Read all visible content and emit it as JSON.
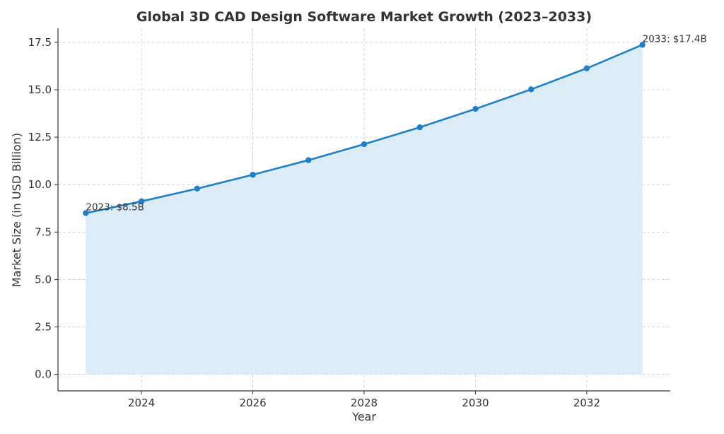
{
  "chart_data": {
    "type": "area",
    "title": "Global 3D CAD Design Software Market Growth (2023–2033)",
    "xlabel": "Year",
    "ylabel": "Market Size (in USD Billion)",
    "x": [
      2023,
      2024,
      2025,
      2026,
      2027,
      2028,
      2029,
      2030,
      2031,
      2032,
      2033
    ],
    "series": [
      {
        "values": [
          8.5,
          9.12,
          9.79,
          10.52,
          11.29,
          12.13,
          13.02,
          13.99,
          15.02,
          16.13,
          17.37
        ]
      }
    ],
    "xlim": [
      2022.5,
      2033.5
    ],
    "ylim": [
      -0.87,
      18.24
    ],
    "xticks": [
      2024,
      2026,
      2028,
      2030,
      2032
    ],
    "yticks": [
      0.0,
      2.5,
      5.0,
      7.5,
      10.0,
      12.5,
      15.0,
      17.5
    ],
    "ytick_labels": [
      "0.0",
      "2.5",
      "5.0",
      "7.5",
      "10.0",
      "12.5",
      "15.0",
      "17.5"
    ],
    "grid": true,
    "annotations": [
      {
        "x": 2023,
        "y": 8.5,
        "text": "2023: $8.5B"
      },
      {
        "x": 2033,
        "y": 17.37,
        "text": "2033: $17.4B"
      }
    ],
    "colors": {
      "line": "#1f7fc7",
      "fill": "#dcecf7"
    }
  }
}
